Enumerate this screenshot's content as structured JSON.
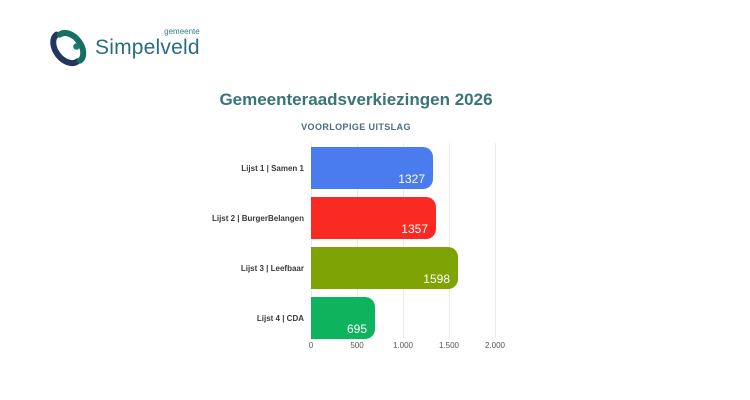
{
  "logo": {
    "small_text": "gemeente",
    "name": "Simpelveld",
    "colors": {
      "navy": "#22375f",
      "teal": "#17705f",
      "dot": "#177a6d",
      "name_text": "#2a6d7f",
      "small_text_color": "#2f7e87"
    }
  },
  "chart_data": {
    "type": "bar",
    "orientation": "horizontal",
    "title": "Gemeenteraadsverkiezingen 2026",
    "subtitle": "VOORLOPIGE UITSLAG",
    "categories": [
      "Lijst 1 | Samen 1",
      "Lijst 2 | BurgerBelangen",
      "Lijst 3 | Leefbaar",
      "Lijst 4 | CDA"
    ],
    "values": [
      1327,
      1357,
      1598,
      695
    ],
    "bar_colors": [
      "#4a7cf0",
      "#fa2a22",
      "#7da305",
      "#0db45d"
    ],
    "value_label_position": "inside-end",
    "xlim": [
      0,
      2000
    ],
    "x_ticks": [
      0,
      500,
      1000,
      1500,
      2000
    ],
    "x_tick_labels": [
      "0",
      "500",
      "1.000",
      "1.500",
      "2.000"
    ],
    "grid": true,
    "legend": "none"
  },
  "colors": {
    "title": "#3a7474",
    "subtitle": "#46717d",
    "category_label": "#3b3b3b",
    "tick_label": "#555555",
    "gridline": "#ebebeb",
    "background": "#ffffff",
    "value_label": "#ffffff"
  }
}
